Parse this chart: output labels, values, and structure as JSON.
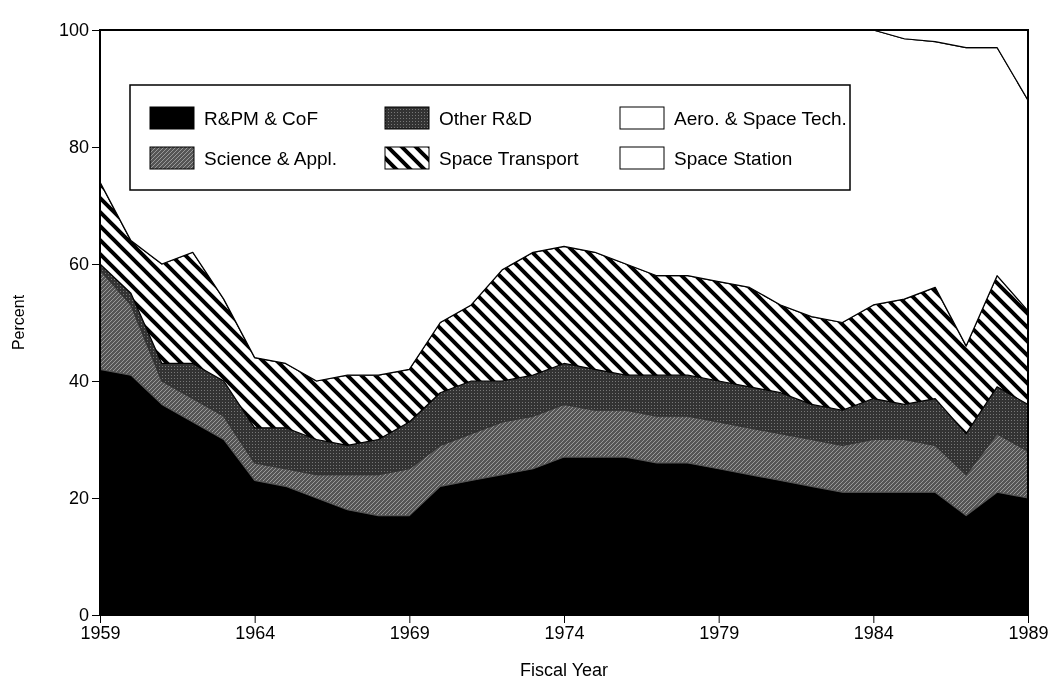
{
  "chart_data": {
    "type": "area",
    "stacked": true,
    "xlabel": "Fiscal Year",
    "ylabel": "Percent",
    "x": [
      1959,
      1960,
      1961,
      1962,
      1963,
      1964,
      1965,
      1966,
      1967,
      1968,
      1969,
      1970,
      1971,
      1972,
      1973,
      1974,
      1975,
      1976,
      1977,
      1978,
      1979,
      1980,
      1981,
      1982,
      1983,
      1984,
      1985,
      1986,
      1987,
      1988,
      1989
    ],
    "xlim": [
      1959,
      1989
    ],
    "xticks": [
      1959,
      1964,
      1969,
      1974,
      1979,
      1984,
      1989
    ],
    "ylim": [
      0,
      100
    ],
    "yticks": [
      0,
      20,
      40,
      60,
      80,
      100
    ],
    "grid": false,
    "legend": "top",
    "series": [
      {
        "name": "R&PM & CoF",
        "color": "#000000",
        "values": [
          42,
          41,
          36,
          33,
          30,
          23,
          22,
          20,
          18,
          17,
          17,
          22,
          23,
          24,
          25,
          27,
          27,
          27,
          26,
          26,
          25,
          24,
          23,
          22,
          21,
          21,
          21,
          21,
          17,
          21,
          20
        ]
      },
      {
        "name": "Science & Appl.",
        "color": "#555555",
        "values": [
          17,
          12,
          4,
          4,
          4,
          3,
          3,
          4,
          6,
          7,
          8,
          7,
          8,
          9,
          9,
          9,
          8,
          8,
          8,
          8,
          8,
          8,
          8,
          8,
          8,
          9,
          9,
          8,
          7,
          10,
          8
        ]
      },
      {
        "name": "Other R&D",
        "color": "#333333",
        "values": [
          1,
          2,
          3,
          6,
          6,
          6,
          7,
          6,
          5,
          6,
          8,
          9,
          9,
          7,
          7,
          7,
          7,
          6,
          7,
          7,
          7,
          7,
          7,
          6,
          6,
          7,
          6,
          8,
          7,
          8,
          8
        ]
      },
      {
        "name": "Space Transport",
        "color": "#000000",
        "values": [
          14,
          9,
          17,
          19,
          14,
          12,
          11,
          10,
          12,
          11,
          9,
          12,
          13,
          19,
          21,
          20,
          20,
          19,
          17,
          17,
          17,
          17,
          15,
          15,
          15,
          16,
          18,
          19,
          15,
          19,
          16
        ]
      },
      {
        "name": "Aero. & Space Tech.",
        "color": "#ffffff",
        "values": [
          26,
          36,
          40,
          38,
          46,
          56,
          57,
          60,
          59,
          59,
          58,
          50,
          47,
          41,
          38,
          37,
          38,
          40,
          42,
          42,
          43,
          44,
          47,
          49,
          50,
          47,
          44.5,
          42,
          51,
          39,
          36
        ]
      },
      {
        "name": "Space Station",
        "color": "#ffffff",
        "values": [
          null,
          null,
          null,
          null,
          null,
          null,
          null,
          null,
          null,
          null,
          null,
          null,
          null,
          null,
          null,
          null,
          null,
          null,
          null,
          null,
          null,
          null,
          null,
          null,
          null,
          0,
          1.5,
          2,
          3,
          3,
          12
        ]
      }
    ]
  }
}
